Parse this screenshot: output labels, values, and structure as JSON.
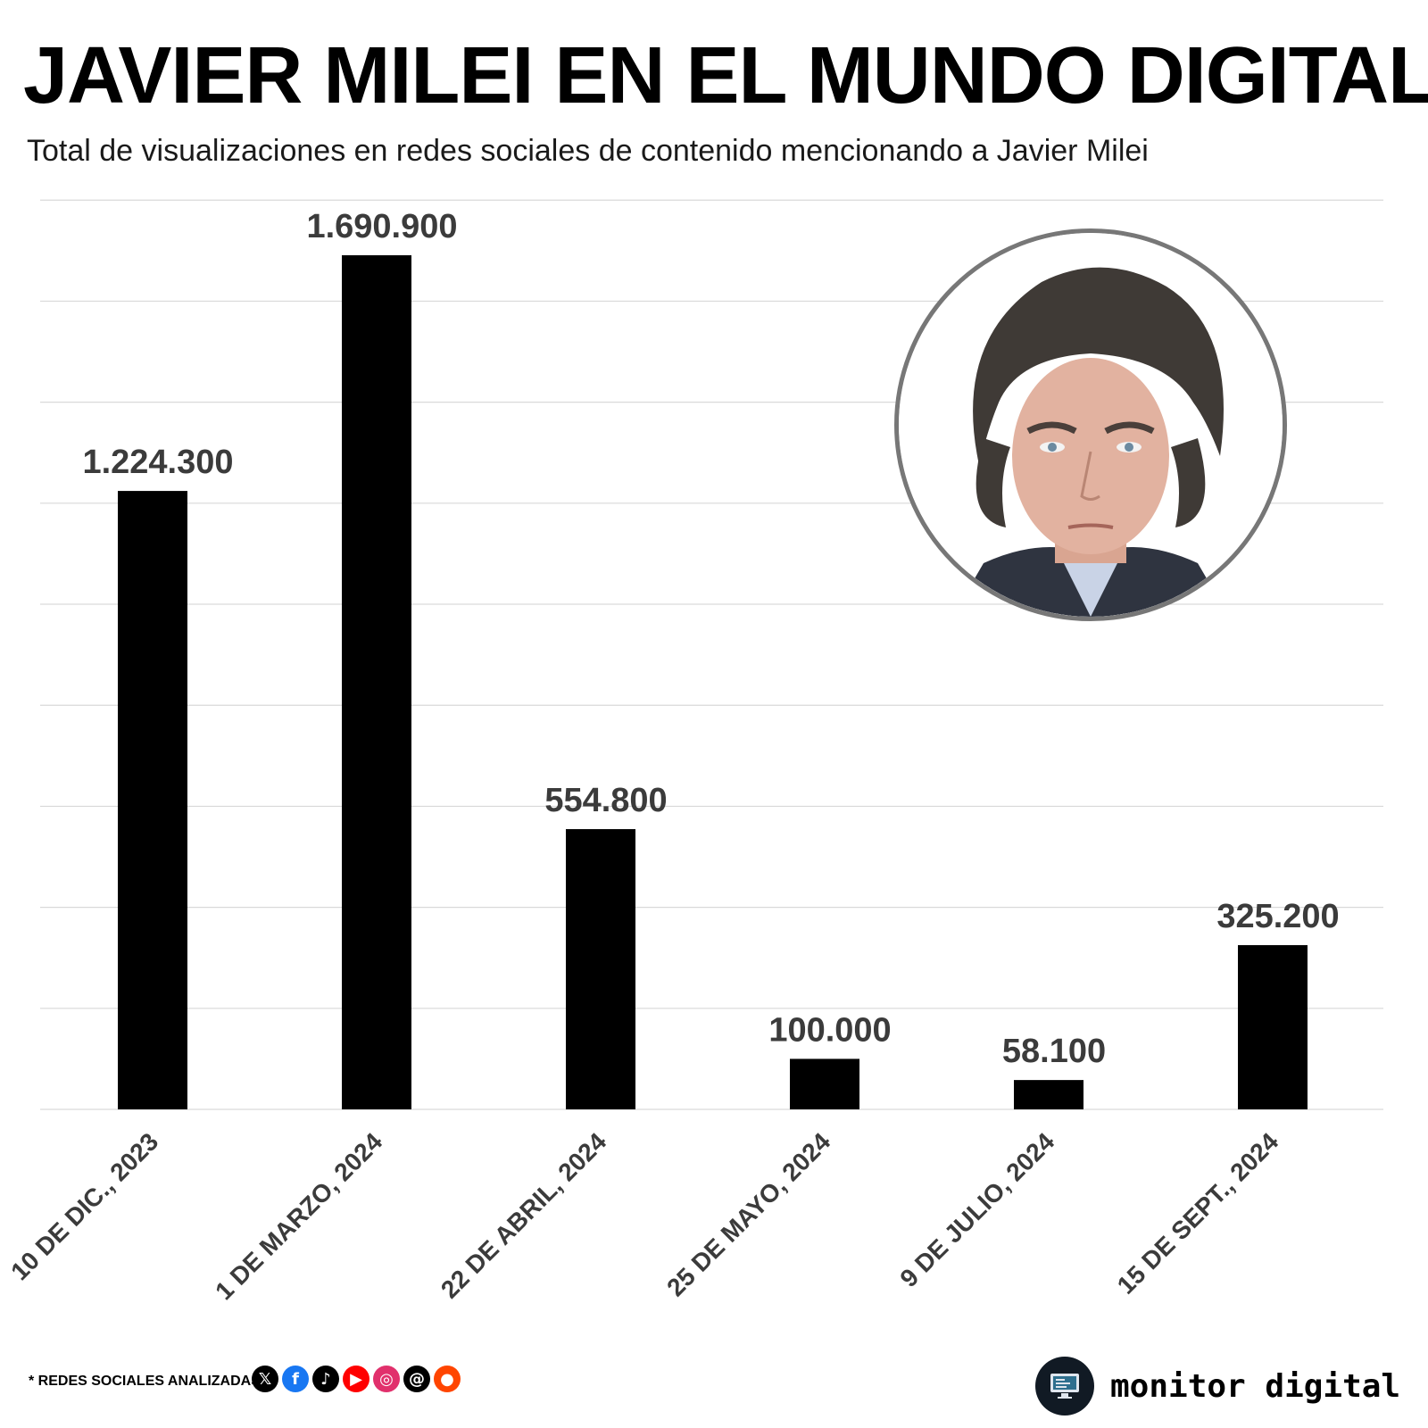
{
  "title": "JAVIER MILEI EN EL MUNDO DIGITAL",
  "subtitle": "Total de visualizaciones en redes sociales de contenido mencionando a Javier Milei",
  "chart_data": {
    "type": "bar",
    "title": "JAVIER MILEI EN EL MUNDO DIGITAL",
    "subtitle": "Total de visualizaciones en redes sociales de contenido mencionando a Javier Milei",
    "categories": [
      "10 DE DIC., 2023",
      "1 DE MARZO, 2024",
      "22 DE ABRIL, 2024",
      "25 DE MAYO, 2024",
      "9 DE JULIO, 2024",
      "15 DE SEPT., 2024"
    ],
    "values": [
      1224300,
      1690900,
      554800,
      100000,
      58100,
      325200
    ],
    "value_labels": [
      "1.224.300",
      "1.690.900",
      "554.800",
      "100.000",
      "58.100",
      "325.200"
    ],
    "xlabel": "",
    "ylabel": "",
    "ylim": [
      0,
      1800000
    ],
    "grid": true,
    "bar_color": "#000000"
  },
  "footer": {
    "note": "* REDES SOCIALES ANALIZADAS",
    "networks": [
      {
        "name": "x-icon",
        "glyph": "𝕏",
        "color": "#000000"
      },
      {
        "name": "facebook-icon",
        "glyph": "f",
        "color": "#1877f2"
      },
      {
        "name": "tiktok-icon",
        "glyph": "♪",
        "color": "#000000"
      },
      {
        "name": "youtube-icon",
        "glyph": "▶",
        "color": "#ff0000"
      },
      {
        "name": "instagram-icon",
        "glyph": "◎",
        "color": "#e1306c"
      },
      {
        "name": "threads-icon",
        "glyph": "@",
        "color": "#000000"
      },
      {
        "name": "reddit-icon",
        "glyph": "●",
        "color": "#ff4500"
      }
    ]
  },
  "brand": {
    "name": "monitor digital",
    "logo": "monitor-icon"
  },
  "portrait": {
    "subject": "person-portrait"
  }
}
